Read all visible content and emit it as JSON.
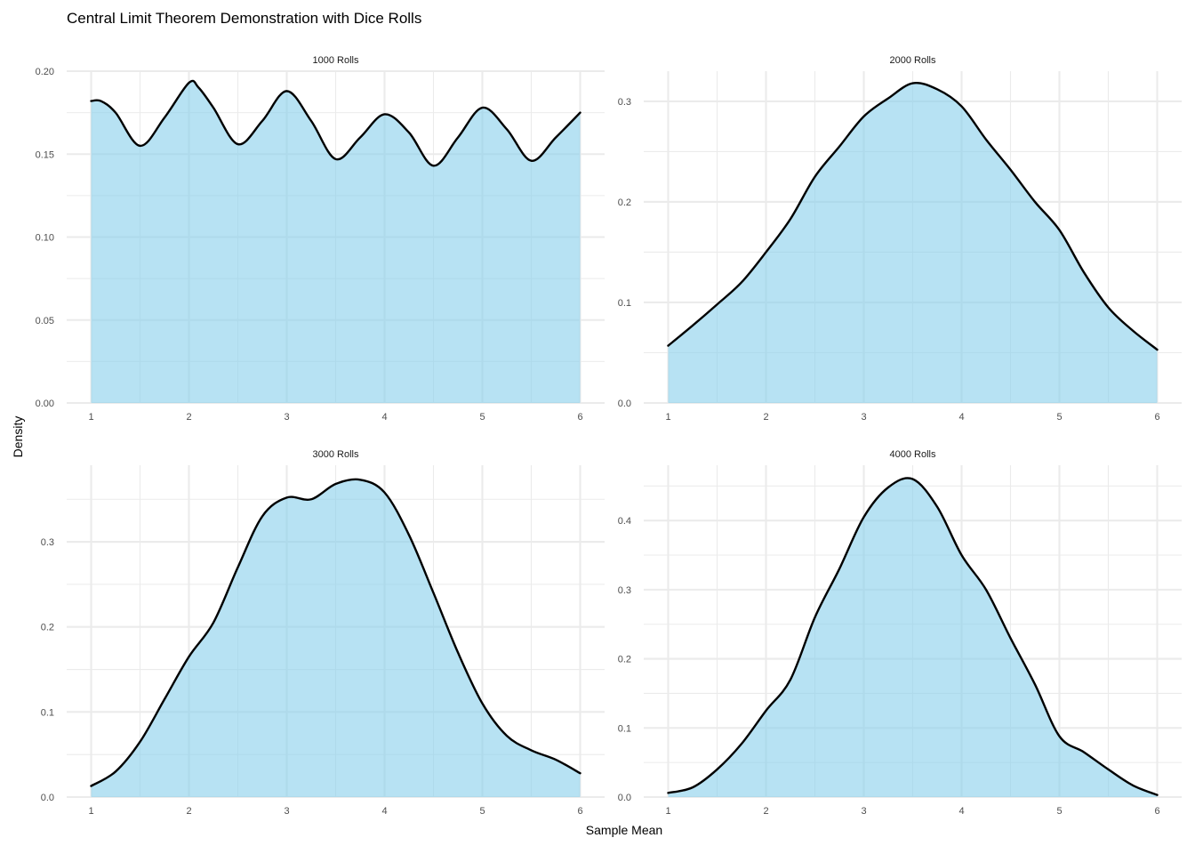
{
  "chart_data": {
    "type": "area",
    "title": "Central Limit Theorem Demonstration with Dice Rolls",
    "xlabel": "Sample Mean",
    "ylabel": "Density",
    "fill_color": "#87CEEB",
    "fill_opacity": 0.6,
    "line_color": "#000000",
    "grid": true,
    "legend": "none",
    "panels": [
      {
        "label": "1000 Rolls",
        "xlim": [
          0.75,
          6.25
        ],
        "ylim": [
          0,
          0.2
        ],
        "xticks": [
          1,
          2,
          3,
          4,
          5,
          6
        ],
        "xtick_labels": [
          "1",
          "2",
          "3",
          "4",
          "5",
          "6"
        ],
        "yticks": [
          0,
          0.05,
          0.1,
          0.15,
          0.2
        ],
        "ytick_labels": [
          "0.00",
          "0.05",
          "0.10",
          "0.15",
          "0.20"
        ],
        "x": [
          1.0,
          1.1,
          1.25,
          1.5,
          1.75,
          2.0,
          2.1,
          2.25,
          2.5,
          2.75,
          3.0,
          3.25,
          3.5,
          3.75,
          4.0,
          4.25,
          4.5,
          4.75,
          5.0,
          5.25,
          5.5,
          5.75,
          6.0
        ],
        "y": [
          0.182,
          0.182,
          0.175,
          0.155,
          0.172,
          0.193,
          0.19,
          0.178,
          0.156,
          0.17,
          0.188,
          0.17,
          0.147,
          0.16,
          0.174,
          0.163,
          0.143,
          0.16,
          0.178,
          0.165,
          0.146,
          0.16,
          0.175
        ]
      },
      {
        "label": "2000 Rolls",
        "xlim": [
          0.75,
          6.25
        ],
        "ylim": [
          0,
          0.33
        ],
        "xticks": [
          1,
          2,
          3,
          4,
          5,
          6
        ],
        "xtick_labels": [
          "1",
          "2",
          "3",
          "4",
          "5",
          "6"
        ],
        "yticks": [
          0,
          0.1,
          0.2,
          0.3
        ],
        "ytick_labels": [
          "0.0",
          "0.1",
          "0.2",
          "0.3"
        ],
        "x": [
          1.0,
          1.25,
          1.5,
          1.75,
          2.0,
          2.25,
          2.5,
          2.75,
          3.0,
          3.25,
          3.5,
          3.75,
          4.0,
          4.25,
          4.5,
          4.75,
          5.0,
          5.25,
          5.5,
          5.75,
          6.0
        ],
        "y": [
          0.057,
          0.077,
          0.098,
          0.12,
          0.15,
          0.183,
          0.225,
          0.255,
          0.285,
          0.303,
          0.318,
          0.312,
          0.295,
          0.262,
          0.232,
          0.2,
          0.172,
          0.13,
          0.095,
          0.072,
          0.053
        ]
      },
      {
        "label": "3000 Rolls",
        "xlim": [
          0.75,
          6.25
        ],
        "ylim": [
          0,
          0.39
        ],
        "xticks": [
          1,
          2,
          3,
          4,
          5,
          6
        ],
        "xtick_labels": [
          "1",
          "2",
          "3",
          "4",
          "5",
          "6"
        ],
        "yticks": [
          0,
          0.1,
          0.2,
          0.3
        ],
        "ytick_labels": [
          "0.0",
          "0.1",
          "0.2",
          "0.3"
        ],
        "x": [
          1.0,
          1.25,
          1.5,
          1.75,
          2.0,
          2.25,
          2.5,
          2.75,
          3.0,
          3.25,
          3.5,
          3.75,
          4.0,
          4.25,
          4.5,
          4.75,
          5.0,
          5.25,
          5.5,
          5.75,
          6.0
        ],
        "y": [
          0.013,
          0.03,
          0.065,
          0.115,
          0.165,
          0.205,
          0.27,
          0.33,
          0.352,
          0.35,
          0.368,
          0.373,
          0.358,
          0.308,
          0.24,
          0.17,
          0.11,
          0.072,
          0.055,
          0.044,
          0.028
        ]
      },
      {
        "label": "4000 Rolls",
        "xlim": [
          0.75,
          6.25
        ],
        "ylim": [
          0,
          0.48
        ],
        "xticks": [
          1,
          2,
          3,
          4,
          5,
          6
        ],
        "xtick_labels": [
          "1",
          "2",
          "3",
          "4",
          "5",
          "6"
        ],
        "yticks": [
          0,
          0.1,
          0.2,
          0.3,
          0.4
        ],
        "ytick_labels": [
          "0.0",
          "0.1",
          "0.2",
          "0.3",
          "0.4"
        ],
        "x": [
          1.0,
          1.25,
          1.5,
          1.75,
          2.0,
          2.25,
          2.5,
          2.75,
          3.0,
          3.25,
          3.5,
          3.75,
          4.0,
          4.25,
          4.5,
          4.75,
          5.0,
          5.25,
          5.5,
          5.75,
          6.0
        ],
        "y": [
          0.006,
          0.014,
          0.04,
          0.077,
          0.125,
          0.17,
          0.26,
          0.33,
          0.405,
          0.448,
          0.46,
          0.42,
          0.35,
          0.3,
          0.23,
          0.163,
          0.088,
          0.065,
          0.04,
          0.017,
          0.003
        ]
      }
    ]
  }
}
